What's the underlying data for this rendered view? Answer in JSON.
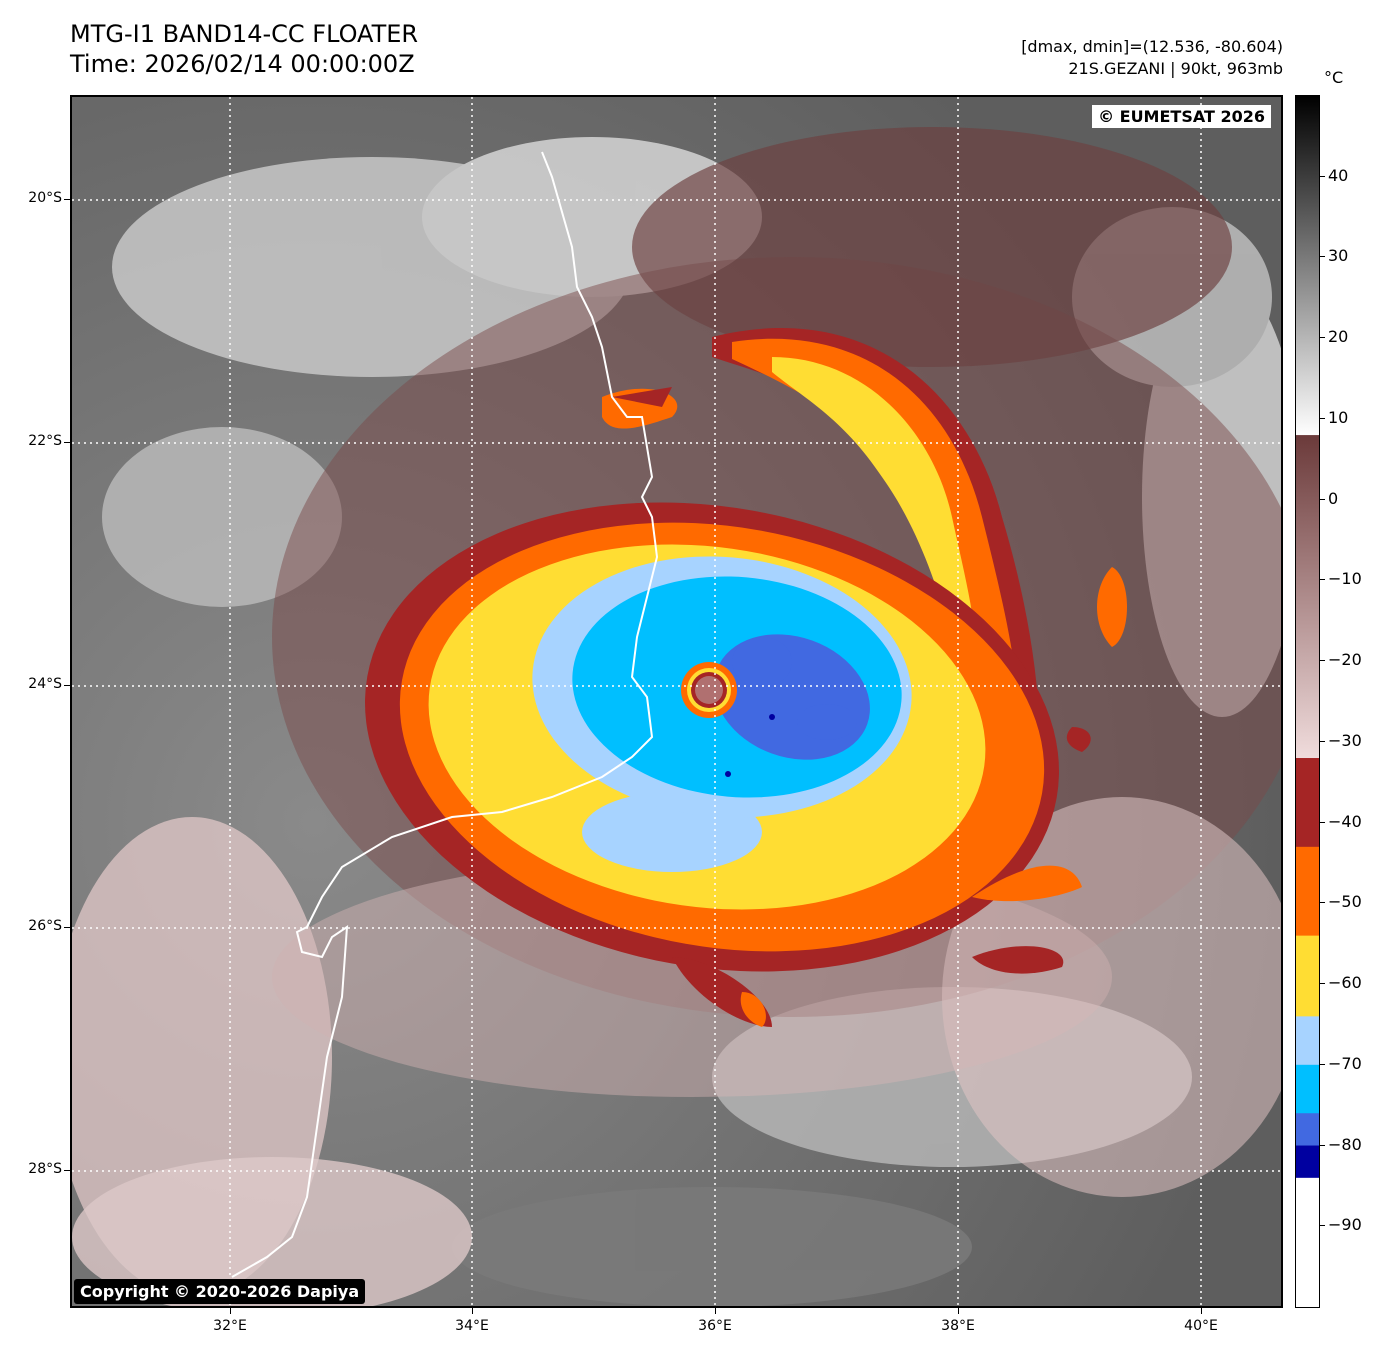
{
  "header": {
    "title_line1": "MTG-I1 BAND14-CC FLOATER",
    "title_line2": "Time: 2026/02/14 00:00:00Z",
    "dmax_dmin": "[dmax, dmin]=(12.536, -80.604)",
    "storm_info": "21S.GEZANI | 90kt, 963mb"
  },
  "map": {
    "watermark_top_right": "© EUMETSAT 2026",
    "watermark_bottom_left": "Copyright © 2020-2026 Dapiya",
    "lat_labels": [
      "20°S",
      "22°S",
      "24°S",
      "26°S",
      "28°S"
    ],
    "lon_labels": [
      "32°E",
      "34°E",
      "36°E",
      "38°E",
      "40°E"
    ]
  },
  "colorbar": {
    "unit": "°C",
    "tick_labels": [
      "40",
      "30",
      "20",
      "10",
      "0",
      "−10",
      "−20",
      "−30",
      "−40",
      "−50",
      "−60",
      "−70",
      "−80",
      "−90"
    ],
    "bands": [
      {
        "name": "grey-scale",
        "from": 50,
        "to": 8,
        "colors": [
          "#000000",
          "#ffffff"
        ]
      },
      {
        "name": "maroon-pink",
        "from": 8,
        "to": -32,
        "colors": [
          "#6b3a3a",
          "#f0dcdc"
        ]
      },
      {
        "name": "dark-red",
        "from": -32,
        "to": -43,
        "color": "#a52525"
      },
      {
        "name": "orange",
        "from": -43,
        "to": -54,
        "color": "#ff6a00"
      },
      {
        "name": "yellow",
        "from": -54,
        "to": -64,
        "color": "#ffdd33"
      },
      {
        "name": "light-blue",
        "from": -64,
        "to": -70,
        "color": "#a7d3ff"
      },
      {
        "name": "sky-blue",
        "from": -70,
        "to": -76,
        "color": "#00bfff"
      },
      {
        "name": "royal-blue",
        "from": -76,
        "to": -80,
        "color": "#4169e1"
      },
      {
        "name": "navy",
        "from": -80,
        "to": -84,
        "color": "#0000a0"
      },
      {
        "name": "white",
        "from": -84,
        "to": -100,
        "color": "#ffffff"
      }
    ]
  },
  "colors": {
    "eye": "#b07070",
    "coastline": "#ffffff",
    "gridline": "#ffffff"
  }
}
